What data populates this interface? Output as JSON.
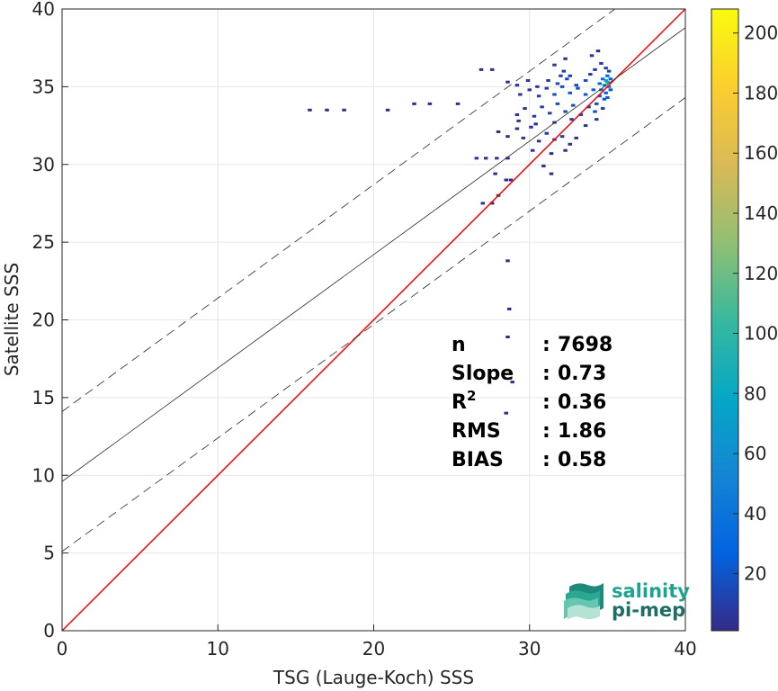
{
  "chart_data": {
    "type": "scatter",
    "subtype": "density-scatter (2D histogram)",
    "xlabel": "TSG (Lauge-Koch) SSS",
    "ylabel": "Satellite SSS",
    "xlim": [
      0,
      40
    ],
    "ylim": [
      0,
      40
    ],
    "xticks": [
      "0",
      "10",
      "20",
      "30",
      "40"
    ],
    "yticks": [
      "0",
      "5",
      "10",
      "15",
      "20",
      "25",
      "30",
      "35",
      "40"
    ],
    "grid": true,
    "lines": [
      {
        "name": "one-to-one",
        "color": "#ff0000",
        "style": "solid",
        "slope": 1.0,
        "intercept": 0.0
      },
      {
        "name": "regression",
        "color": "#262626",
        "style": "solid",
        "slope": 0.73,
        "intercept": 9.6
      },
      {
        "name": "regression+spread",
        "color": "#262626",
        "style": "dashed",
        "slope": 0.73,
        "intercept": 14.1
      },
      {
        "name": "regression-spread",
        "color": "#262626",
        "style": "dashed",
        "slope": 0.73,
        "intercept": 5.1
      }
    ],
    "points": [
      {
        "x": 15.9,
        "y": 33.5,
        "c": 1
      },
      {
        "x": 17.0,
        "y": 33.5,
        "c": 1
      },
      {
        "x": 18.1,
        "y": 33.5,
        "c": 1
      },
      {
        "x": 20.9,
        "y": 33.5,
        "c": 1
      },
      {
        "x": 22.6,
        "y": 33.9,
        "c": 2
      },
      {
        "x": 23.6,
        "y": 33.9,
        "c": 1
      },
      {
        "x": 25.4,
        "y": 33.9,
        "c": 2
      },
      {
        "x": 26.9,
        "y": 36.1,
        "c": 2
      },
      {
        "x": 27.6,
        "y": 36.1,
        "c": 2
      },
      {
        "x": 26.6,
        "y": 30.4,
        "c": 6
      },
      {
        "x": 27.2,
        "y": 30.4,
        "c": 4
      },
      {
        "x": 27.9,
        "y": 30.4,
        "c": 6
      },
      {
        "x": 28.6,
        "y": 30.4,
        "c": 3
      },
      {
        "x": 27.0,
        "y": 27.5,
        "c": 5
      },
      {
        "x": 27.6,
        "y": 27.5,
        "c": 4
      },
      {
        "x": 28.0,
        "y": 28.0,
        "c": 3
      },
      {
        "x": 27.8,
        "y": 29.4,
        "c": 2
      },
      {
        "x": 28.5,
        "y": 29.0,
        "c": 2
      },
      {
        "x": 28.8,
        "y": 29.0,
        "c": 2
      },
      {
        "x": 28.6,
        "y": 23.8,
        "c": 3
      },
      {
        "x": 28.7,
        "y": 20.7,
        "c": 3
      },
      {
        "x": 28.6,
        "y": 18.9,
        "c": 2
      },
      {
        "x": 28.9,
        "y": 16.0,
        "c": 2
      },
      {
        "x": 28.5,
        "y": 14.0,
        "c": 1
      },
      {
        "x": 28.0,
        "y": 32.1,
        "c": 3
      },
      {
        "x": 28.6,
        "y": 31.8,
        "c": 4
      },
      {
        "x": 29.2,
        "y": 32.3,
        "c": 5
      },
      {
        "x": 29.6,
        "y": 31.7,
        "c": 4
      },
      {
        "x": 30.1,
        "y": 32.4,
        "c": 5
      },
      {
        "x": 30.6,
        "y": 31.5,
        "c": 6
      },
      {
        "x": 31.1,
        "y": 32.0,
        "c": 7
      },
      {
        "x": 31.6,
        "y": 31.6,
        "c": 8
      },
      {
        "x": 32.1,
        "y": 31.8,
        "c": 9
      },
      {
        "x": 32.6,
        "y": 31.3,
        "c": 6
      },
      {
        "x": 33.0,
        "y": 31.7,
        "c": 5
      },
      {
        "x": 30.2,
        "y": 30.9,
        "c": 4
      },
      {
        "x": 31.4,
        "y": 30.7,
        "c": 3
      },
      {
        "x": 32.3,
        "y": 30.9,
        "c": 4
      },
      {
        "x": 31.4,
        "y": 29.4,
        "c": 2
      },
      {
        "x": 30.9,
        "y": 29.9,
        "c": 3
      },
      {
        "x": 29.2,
        "y": 33.2,
        "c": 6
      },
      {
        "x": 29.7,
        "y": 33.6,
        "c": 8
      },
      {
        "x": 30.3,
        "y": 33.1,
        "c": 9
      },
      {
        "x": 30.8,
        "y": 33.7,
        "c": 10
      },
      {
        "x": 31.3,
        "y": 33.3,
        "c": 12
      },
      {
        "x": 31.8,
        "y": 33.9,
        "c": 14
      },
      {
        "x": 32.3,
        "y": 33.4,
        "c": 15
      },
      {
        "x": 32.8,
        "y": 33.8,
        "c": 16
      },
      {
        "x": 33.3,
        "y": 33.2,
        "c": 14
      },
      {
        "x": 33.8,
        "y": 33.7,
        "c": 15
      },
      {
        "x": 34.2,
        "y": 33.4,
        "c": 18
      },
      {
        "x": 29.4,
        "y": 34.5,
        "c": 6
      },
      {
        "x": 30.0,
        "y": 34.8,
        "c": 9
      },
      {
        "x": 30.6,
        "y": 34.4,
        "c": 10
      },
      {
        "x": 31.1,
        "y": 34.9,
        "c": 12
      },
      {
        "x": 31.6,
        "y": 34.5,
        "c": 16
      },
      {
        "x": 32.1,
        "y": 35.0,
        "c": 18
      },
      {
        "x": 32.6,
        "y": 34.6,
        "c": 20
      },
      {
        "x": 33.1,
        "y": 34.9,
        "c": 18
      },
      {
        "x": 33.6,
        "y": 34.5,
        "c": 22
      },
      {
        "x": 34.1,
        "y": 34.8,
        "c": 24
      },
      {
        "x": 34.5,
        "y": 34.4,
        "c": 28
      },
      {
        "x": 28.6,
        "y": 35.3,
        "c": 4
      },
      {
        "x": 29.2,
        "y": 35.1,
        "c": 5
      },
      {
        "x": 29.9,
        "y": 35.4,
        "c": 6
      },
      {
        "x": 30.5,
        "y": 35.0,
        "c": 8
      },
      {
        "x": 31.2,
        "y": 35.4,
        "c": 10
      },
      {
        "x": 31.8,
        "y": 35.2,
        "c": 14
      },
      {
        "x": 32.4,
        "y": 35.5,
        "c": 16
      },
      {
        "x": 33.0,
        "y": 35.1,
        "c": 14
      },
      {
        "x": 33.6,
        "y": 35.4,
        "c": 18
      },
      {
        "x": 29.3,
        "y": 32.8,
        "c": 5
      },
      {
        "x": 30.4,
        "y": 32.6,
        "c": 6
      },
      {
        "x": 31.6,
        "y": 32.7,
        "c": 8
      },
      {
        "x": 32.7,
        "y": 32.9,
        "c": 9
      },
      {
        "x": 33.6,
        "y": 32.5,
        "c": 7
      },
      {
        "x": 34.3,
        "y": 32.9,
        "c": 10
      },
      {
        "x": 31.6,
        "y": 36.4,
        "c": 5
      },
      {
        "x": 32.2,
        "y": 36.0,
        "c": 8
      },
      {
        "x": 32.0,
        "y": 35.7,
        "c": 12
      },
      {
        "x": 32.6,
        "y": 35.7,
        "c": 9
      },
      {
        "x": 32.3,
        "y": 36.8,
        "c": 3
      },
      {
        "x": 33.9,
        "y": 35.8,
        "c": 6
      },
      {
        "x": 34.2,
        "y": 36.1,
        "c": 8
      },
      {
        "x": 34.6,
        "y": 36.5,
        "c": 10
      },
      {
        "x": 34.0,
        "y": 37.0,
        "c": 4
      },
      {
        "x": 34.4,
        "y": 37.3,
        "c": 3
      },
      {
        "x": 34.9,
        "y": 36.2,
        "c": 14
      },
      {
        "x": 35.1,
        "y": 36.0,
        "c": 12
      },
      {
        "x": 34.6,
        "y": 34.8,
        "c": 40
      },
      {
        "x": 34.8,
        "y": 35.1,
        "c": 60
      },
      {
        "x": 34.9,
        "y": 35.4,
        "c": 85
      },
      {
        "x": 35.0,
        "y": 35.3,
        "c": 70
      },
      {
        "x": 35.1,
        "y": 35.0,
        "c": 45
      },
      {
        "x": 34.7,
        "y": 35.5,
        "c": 35
      },
      {
        "x": 35.0,
        "y": 35.7,
        "c": 30
      },
      {
        "x": 34.9,
        "y": 34.6,
        "c": 28
      },
      {
        "x": 35.2,
        "y": 35.5,
        "c": 25
      },
      {
        "x": 34.5,
        "y": 35.2,
        "c": 30
      },
      {
        "x": 34.8,
        "y": 34.2,
        "c": 20
      },
      {
        "x": 34.3,
        "y": 33.9,
        "c": 16
      },
      {
        "x": 34.7,
        "y": 33.6,
        "c": 12
      },
      {
        "x": 35.0,
        "y": 34.3,
        "c": 24
      },
      {
        "x": 35.2,
        "y": 34.8,
        "c": 22
      }
    ],
    "colorbar": {
      "min": 1,
      "max": 208,
      "ticks": [
        "20",
        "40",
        "60",
        "80",
        "100",
        "120",
        "140",
        "160",
        "180",
        "200"
      ],
      "colormap": "parula",
      "stops": [
        "#352a87",
        "#0363e1",
        "#1485d4",
        "#06a7c6",
        "#38b99e",
        "#92bf73",
        "#d9ba56",
        "#fcce2e",
        "#f9fb0e"
      ]
    },
    "stats": [
      {
        "label": "n",
        "sep": ":",
        "value": "7698"
      },
      {
        "label": "Slope",
        "sep": ":",
        "value": "0.73"
      },
      {
        "label": "R",
        "sup": "2",
        "sep": ":",
        "value": "0.36"
      },
      {
        "label": "RMS",
        "sep": ":",
        "value": "1.86"
      },
      {
        "label": "BIAS",
        "sep": ":",
        "value": "0.58"
      }
    ]
  },
  "logo": {
    "line1": "salinity",
    "line2": "pi-mep",
    "color1": "#1fa390",
    "color2": "#1e6d66"
  }
}
